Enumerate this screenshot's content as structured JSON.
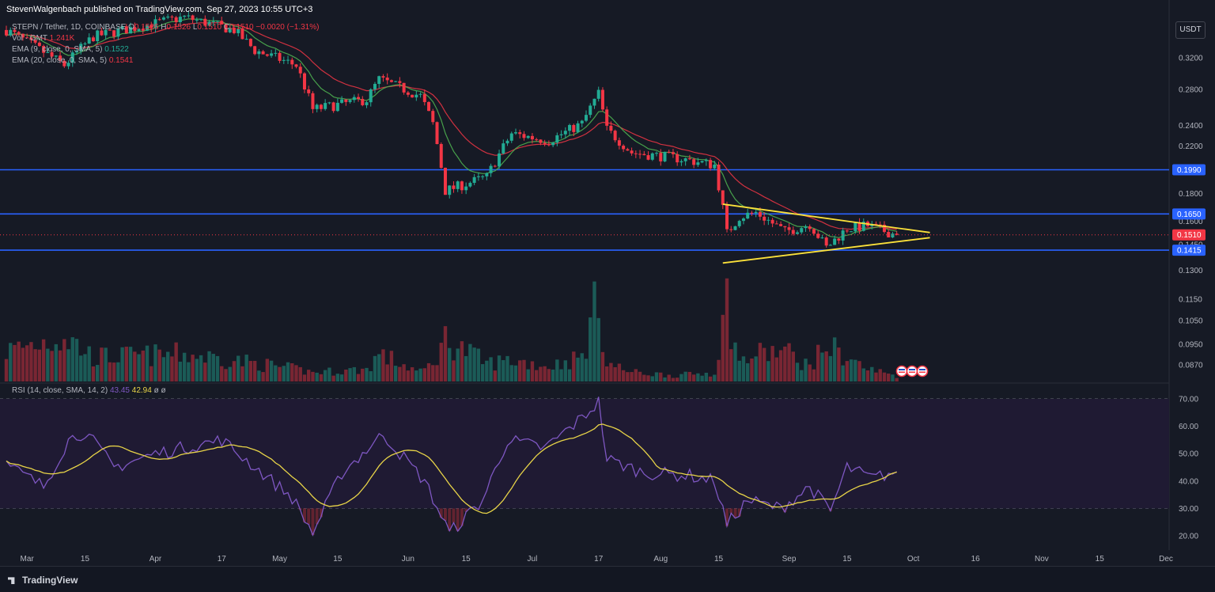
{
  "header": {
    "publisher": "StevenWalgenbach published on TradingView.com, Sep 27, 2023 10:55 UTC+3"
  },
  "legend": {
    "symbol": "STEPN / Tether, 1D, COINBASE",
    "o_label": "O",
    "o_value": "0.1526",
    "h_label": "H",
    "h_value": "0.1526",
    "l_label": "L",
    "l_value": "0.1510",
    "c_label": "C",
    "c_value": "0.1510",
    "change": "−0.0020 (−1.31%)",
    "vol_label": "Vol · GMT",
    "vol_value": "1.241K",
    "ema9_label": "EMA (9, close, 0, SMA, 5)",
    "ema9_value": "0.1522",
    "ema20_label": "EMA (20, close, 0, SMA, 5)",
    "ema20_value": "0.1541"
  },
  "rsi_legend": {
    "label": "RSI (14, close, SMA, 14, 2)",
    "rsi_value": "43.45",
    "ma_value": "42.94",
    "extra": "ø ø"
  },
  "currency_button": "USDT",
  "price_ticks": [
    "0.3200",
    "0.2800",
    "0.2400",
    "0.2200",
    "0.1800",
    "0.1600",
    "0.1450",
    "0.1300",
    "0.1150",
    "0.1050",
    "0.0950",
    "0.0870"
  ],
  "rsi_ticks": [
    "70.00",
    "60.00",
    "50.00",
    "40.00",
    "30.00",
    "20.00"
  ],
  "time_ticks": [
    "Mar",
    "15",
    "Apr",
    "17",
    "May",
    "15",
    "Jun",
    "15",
    "Jul",
    "17",
    "Aug",
    "15",
    "Sep",
    "15",
    "Oct",
    "16",
    "Nov",
    "15",
    "Dec"
  ],
  "levels": [
    {
      "value": "0.1990",
      "color": "#2962ff"
    },
    {
      "value": "0.1650",
      "color": "#2962ff"
    },
    {
      "value": "0.1415",
      "color": "#2962ff"
    }
  ],
  "last_price": {
    "value": "0.1510",
    "color": "#f23645"
  },
  "footer": {
    "brand": "TradingView"
  },
  "colors": {
    "background": "#161a25",
    "up": "#22ab94",
    "down": "#f23645",
    "ema9": "#4caf50",
    "ema20": "#f23645",
    "triangle": "#fbe13a",
    "rsi_line": "#7e57c2",
    "rsi_ma": "#e8d448",
    "level_line": "#2962ff"
  },
  "chart_data": {
    "type": "candlestick",
    "symbol": "STEPN / Tether",
    "interval": "1D",
    "y_scale": "log",
    "ylim": [
      0.08,
      0.34
    ],
    "rsi_ylim": [
      16,
      72
    ],
    "horizontal_levels": [
      0.199,
      0.165,
      0.1415
    ],
    "triangle": {
      "upper": [
        [
          "2023-08-16",
          0.172
        ],
        [
          "2023-10-05",
          0.1525
        ]
      ],
      "lower": [
        [
          "2023-08-16",
          0.134
        ],
        [
          "2023-10-05",
          0.1492
        ]
      ]
    },
    "anchors": [
      [
        "2023-02-24",
        0.36,
        10
      ],
      [
        "2023-03-10",
        0.31,
        15
      ],
      [
        "2023-03-17",
        0.35,
        8
      ],
      [
        "2023-04-08",
        0.38,
        9
      ],
      [
        "2023-04-20",
        0.36,
        7
      ],
      [
        "2023-04-25",
        0.33,
        6
      ],
      [
        "2023-05-05",
        0.31,
        4
      ],
      [
        "2023-05-09",
        0.257,
        3
      ],
      [
        "2023-05-22",
        0.268,
        4
      ],
      [
        "2023-05-25",
        0.292,
        9
      ],
      [
        "2023-06-04",
        0.272,
        3
      ],
      [
        "2023-06-07",
        0.242,
        6
      ],
      [
        "2023-06-10",
        0.182,
        14
      ],
      [
        "2023-06-20",
        0.193,
        6
      ],
      [
        "2023-06-26",
        0.232,
        7
      ],
      [
        "2023-07-05",
        0.225,
        5
      ],
      [
        "2023-07-13",
        0.242,
        8
      ],
      [
        "2023-07-17",
        0.275,
        28
      ],
      [
        "2023-07-19",
        0.236,
        6
      ],
      [
        "2023-07-25",
        0.214,
        3
      ],
      [
        "2023-08-05",
        0.209,
        2
      ],
      [
        "2023-08-14",
        0.203,
        3
      ],
      [
        "2023-08-17",
        0.152,
        26
      ],
      [
        "2023-08-20",
        0.163,
        6
      ],
      [
        "2023-08-24",
        0.166,
        9
      ],
      [
        "2023-08-31",
        0.153,
        10
      ],
      [
        "2023-09-06",
        0.158,
        5
      ],
      [
        "2023-09-10",
        0.143,
        12
      ],
      [
        "2023-09-15",
        0.155,
        8
      ],
      [
        "2023-09-20",
        0.157,
        4
      ],
      [
        "2023-09-27",
        0.151,
        2
      ]
    ],
    "rsi": [
      [
        "2023-02-24",
        46
      ],
      [
        "2023-03-05",
        38
      ],
      [
        "2023-03-11",
        55
      ],
      [
        "2023-03-15",
        58
      ],
      [
        "2023-03-22",
        45
      ],
      [
        "2023-04-01",
        50
      ],
      [
        "2023-04-17",
        55
      ],
      [
        "2023-05-04",
        34
      ],
      [
        "2023-05-09",
        21
      ],
      [
        "2023-05-16",
        43
      ],
      [
        "2023-05-26",
        57
      ],
      [
        "2023-06-05",
        40
      ],
      [
        "2023-06-11",
        21
      ],
      [
        "2023-06-19",
        33
      ],
      [
        "2023-06-25",
        55
      ],
      [
        "2023-07-04",
        52
      ],
      [
        "2023-07-13",
        63
      ],
      [
        "2023-07-17",
        69
      ],
      [
        "2023-07-19",
        48
      ],
      [
        "2023-07-28",
        43
      ],
      [
        "2023-08-08",
        42
      ],
      [
        "2023-08-14",
        40
      ],
      [
        "2023-08-17",
        24
      ],
      [
        "2023-08-22",
        33
      ],
      [
        "2023-08-30",
        30
      ],
      [
        "2023-09-06",
        38
      ],
      [
        "2023-09-11",
        29
      ],
      [
        "2023-09-15",
        45
      ],
      [
        "2023-09-21",
        41
      ],
      [
        "2023-09-27",
        43.45
      ]
    ]
  }
}
